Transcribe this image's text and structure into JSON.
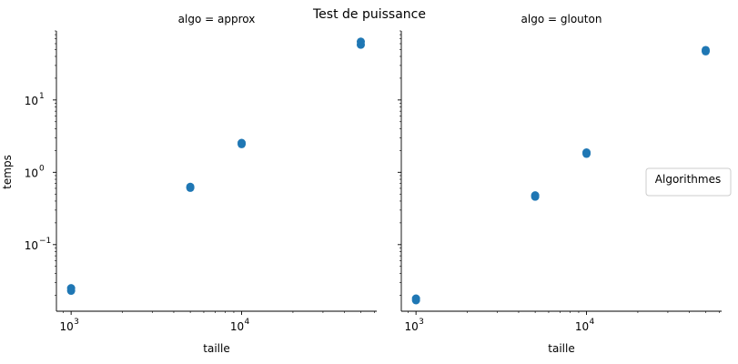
{
  "chart_data": {
    "type": "scatter",
    "title": "Test de puissance",
    "xscale": "log",
    "yscale": "log",
    "xlim": [
      820,
      62000
    ],
    "ylim": [
      0.012,
      90
    ],
    "xlabel": "taille",
    "ylabel": "temps",
    "sharey": true,
    "marker_color": "#1f77b4",
    "xticks": [
      {
        "value": 1000,
        "base": "10",
        "exp": "3"
      },
      {
        "value": 10000,
        "base": "10",
        "exp": "4"
      }
    ],
    "yticks": [
      {
        "value": 0.1,
        "base": "10",
        "exp": "−1"
      },
      {
        "value": 1,
        "base": "10",
        "exp": "0"
      },
      {
        "value": 10,
        "base": "10",
        "exp": "1"
      }
    ],
    "panels": [
      {
        "title": "algo = approx",
        "points": [
          {
            "x": 1000,
            "y": 0.023
          },
          {
            "x": 1000,
            "y": 0.025
          },
          {
            "x": 5000,
            "y": 0.61
          },
          {
            "x": 5000,
            "y": 0.63
          },
          {
            "x": 10000,
            "y": 2.45
          },
          {
            "x": 10000,
            "y": 2.55
          },
          {
            "x": 50000,
            "y": 58
          },
          {
            "x": 50000,
            "y": 64
          }
        ]
      },
      {
        "title": "algo = glouton",
        "points": [
          {
            "x": 1000,
            "y": 0.017
          },
          {
            "x": 1000,
            "y": 0.018
          },
          {
            "x": 5000,
            "y": 0.46
          },
          {
            "x": 5000,
            "y": 0.48
          },
          {
            "x": 10000,
            "y": 1.8
          },
          {
            "x": 10000,
            "y": 1.88
          },
          {
            "x": 50000,
            "y": 47
          },
          {
            "x": 50000,
            "y": 49
          }
        ]
      }
    ],
    "legend": {
      "title": "Algorithmes",
      "placement": "right"
    }
  }
}
